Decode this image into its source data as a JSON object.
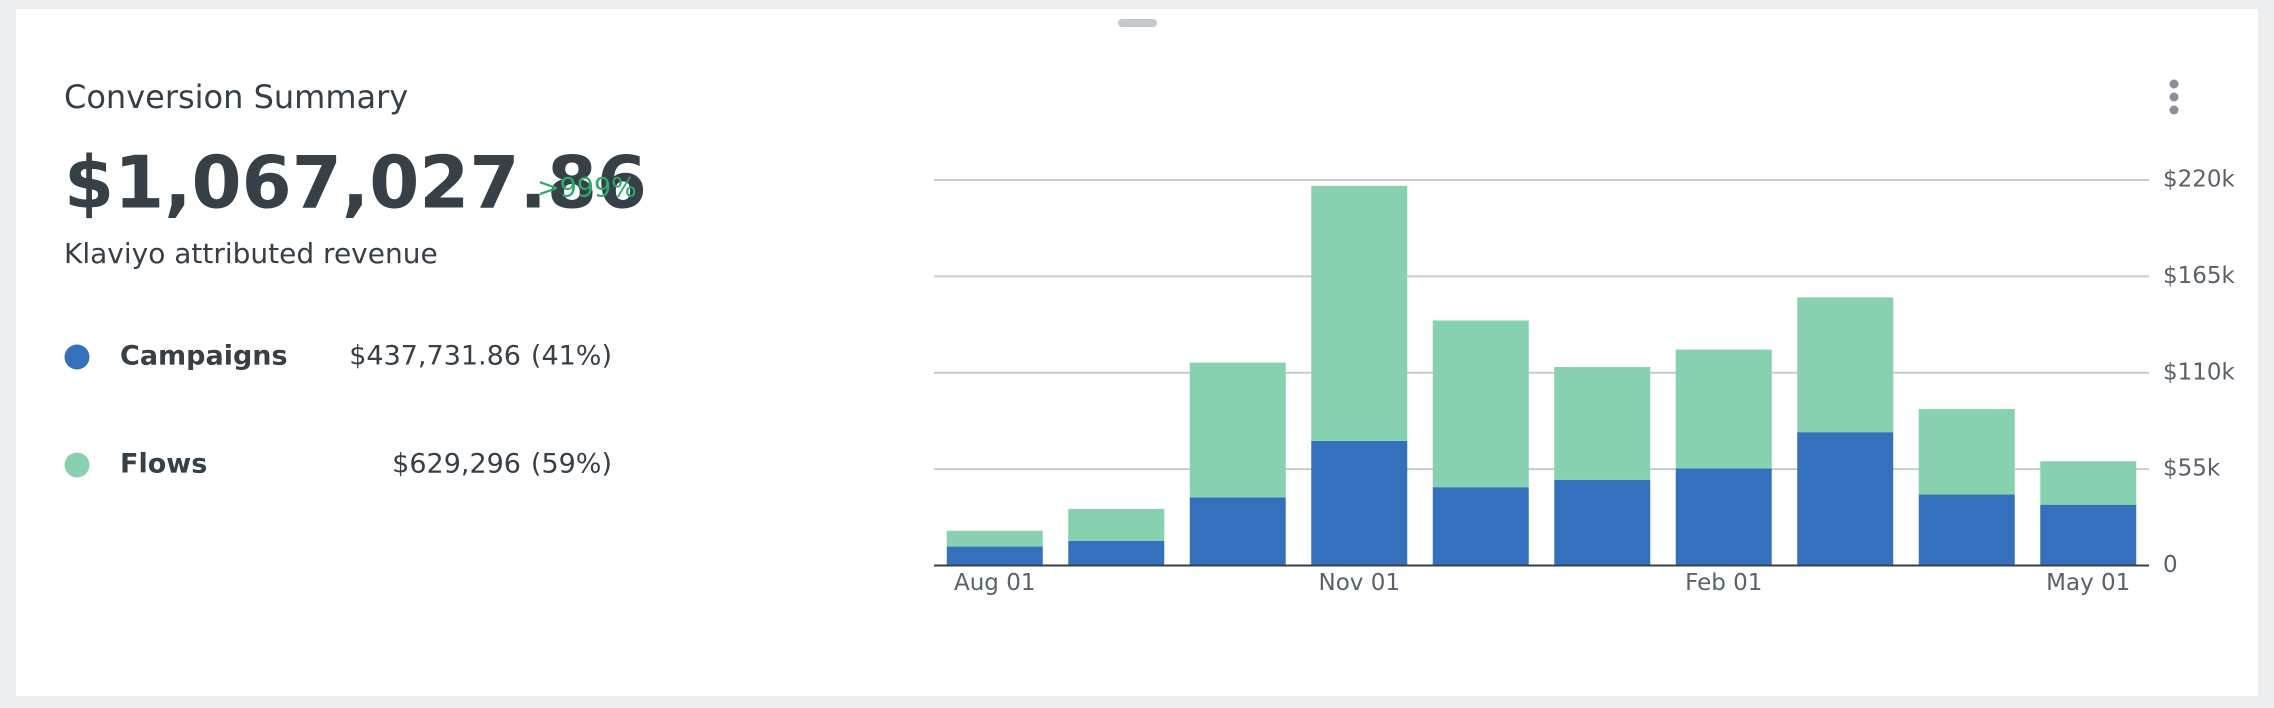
{
  "card": {
    "title": "Conversion Summary",
    "total": "$1,067,027.86",
    "change": ">999%",
    "subtitle": "Klaviyo attributed revenue",
    "breakdown": [
      {
        "amount": "$437,731.86",
        "share": "(41%)"
      },
      {
        "amount": "$629,296",
        "share": "(59%)"
      }
    ]
  },
  "chart_data": {
    "type": "stacked-bar",
    "categories": [
      "Aug 01",
      null,
      null,
      "Nov 01",
      null,
      null,
      "Feb 01",
      null,
      null,
      "May 01"
    ],
    "series": [
      {
        "name": "Campaigns",
        "color": "#3470bb",
        "values": [
          10800,
          14100,
          38900,
          71100,
          44700,
          48800,
          55400,
          76100,
          40500,
          34700
        ]
      },
      {
        "name": "Flows",
        "color": "#88d1b0",
        "values": [
          9000,
          18200,
          76900,
          145600,
          95100,
          64500,
          67800,
          76900,
          48800,
          24800
        ]
      }
    ],
    "ylim": [
      0,
      220000
    ],
    "yticks": [
      0,
      {
        "value": 55000,
        "label": "$55k"
      },
      {
        "value": 110000,
        "label": "$110k"
      },
      {
        "value": 165000,
        "label": "$165k"
      },
      {
        "value": 220000,
        "label": "$220k"
      }
    ],
    "grid": true
  }
}
